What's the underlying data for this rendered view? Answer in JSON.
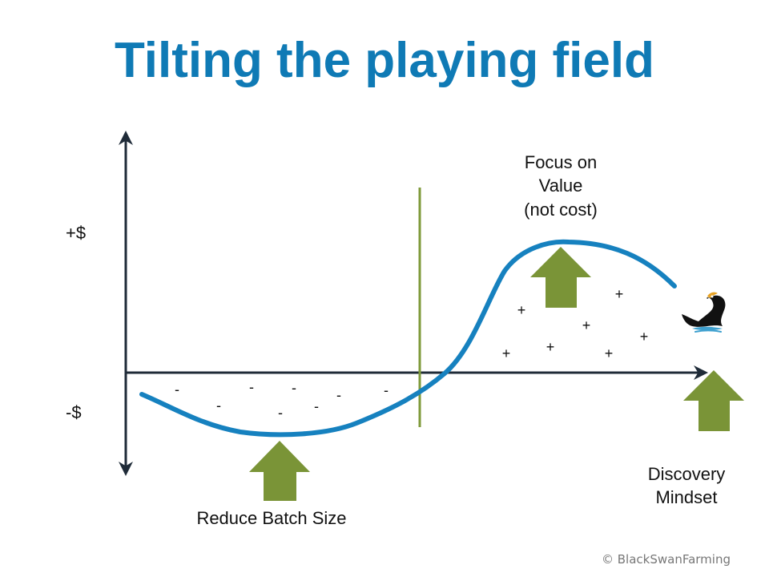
{
  "title": "Tilting the playing field",
  "axis_labels": {
    "positive": "+$",
    "negative": "-$"
  },
  "callouts": {
    "focus_on_value": [
      "Focus on",
      "Value",
      "(not cost)"
    ],
    "reduce_batch_size": "Reduce Batch Size",
    "discovery_mindset": [
      "Discovery",
      "Mindset"
    ]
  },
  "signs": {
    "negative": "-",
    "positive": "+"
  },
  "credit": "© BlackSwanFarming",
  "icons": {
    "swan": "black-swan-icon",
    "arrows": "up-arrow-icon"
  },
  "colors": {
    "title": "#0f7ab5",
    "curve": "#1681bf",
    "axes": "#1f2b38",
    "arrow": "#7a9437",
    "divider": "#7f9a3a",
    "swan_water": "#3ea0cf"
  }
}
